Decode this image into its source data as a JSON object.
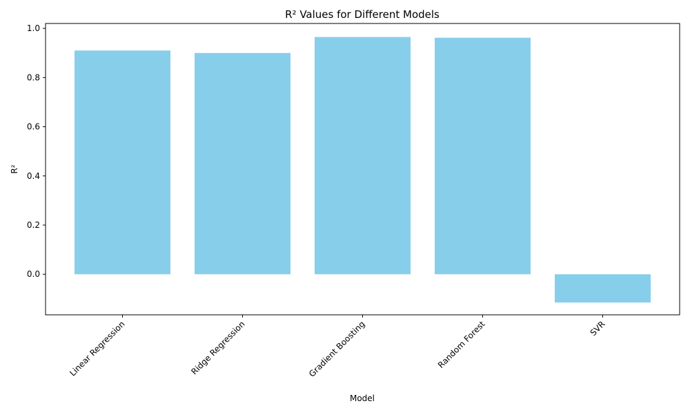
{
  "chart_data": {
    "type": "bar",
    "title": "R² Values for Different Models",
    "xlabel": "Model",
    "ylabel": "R²",
    "categories": [
      "Linear Regression",
      "Ridge Regression",
      "Gradient Boosting",
      "Random Forest",
      "SVR"
    ],
    "values": [
      0.91,
      0.9,
      0.965,
      0.962,
      -0.115
    ],
    "ylim": [
      -0.165,
      1.02
    ],
    "yticks": [
      "0.0",
      "0.2",
      "0.4",
      "0.6",
      "0.8",
      "1.0"
    ],
    "bar_color": "#87ceeb",
    "grid": false,
    "legend": "none"
  }
}
